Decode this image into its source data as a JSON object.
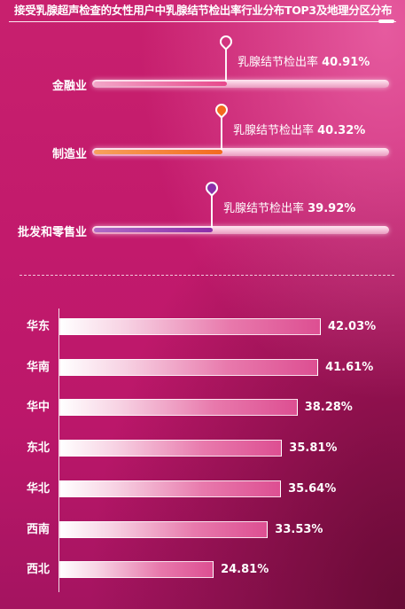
{
  "title": "接受乳腺超声检查的女性用户中乳腺结节检出率行业分布TOP3及地理分区分布",
  "metric_label": "乳腺结节检出率",
  "colors": {
    "industry_1": "#e7498c",
    "industry_2": "#f36a1e",
    "industry_3": "#8c2ea8",
    "bar_gradient_start": "#ffffff",
    "bar_gradient_end": "#dd4f92"
  },
  "industries": [
    {
      "name": "金融业",
      "value_text": "40.91%"
    },
    {
      "name": "制造业",
      "value_text": "40.32%"
    },
    {
      "name": "批发和零售业",
      "value_text": "39.92%"
    }
  ],
  "regions": [
    {
      "name": "华东",
      "value_text": "42.03%"
    },
    {
      "name": "华南",
      "value_text": "41.61%"
    },
    {
      "name": "华中",
      "value_text": "38.28%"
    },
    {
      "name": "东北",
      "value_text": "35.81%"
    },
    {
      "name": "华北",
      "value_text": "35.64%"
    },
    {
      "name": "西南",
      "value_text": "33.53%"
    },
    {
      "name": "西北",
      "value_text": "24.81%"
    }
  ],
  "chart_data": [
    {
      "type": "bar",
      "orientation": "horizontal",
      "categories": [
        "金融业",
        "制造业",
        "批发和零售业"
      ],
      "values": [
        40.91,
        40.32,
        39.92
      ],
      "unit": "%",
      "ylabel": "乳腺结节检出率"
    },
    {
      "type": "bar",
      "orientation": "horizontal",
      "categories": [
        "华东",
        "华南",
        "华中",
        "东北",
        "华北",
        "西南",
        "西北"
      ],
      "values": [
        42.03,
        41.61,
        38.28,
        35.81,
        35.64,
        33.53,
        24.81
      ],
      "unit": "%"
    }
  ]
}
